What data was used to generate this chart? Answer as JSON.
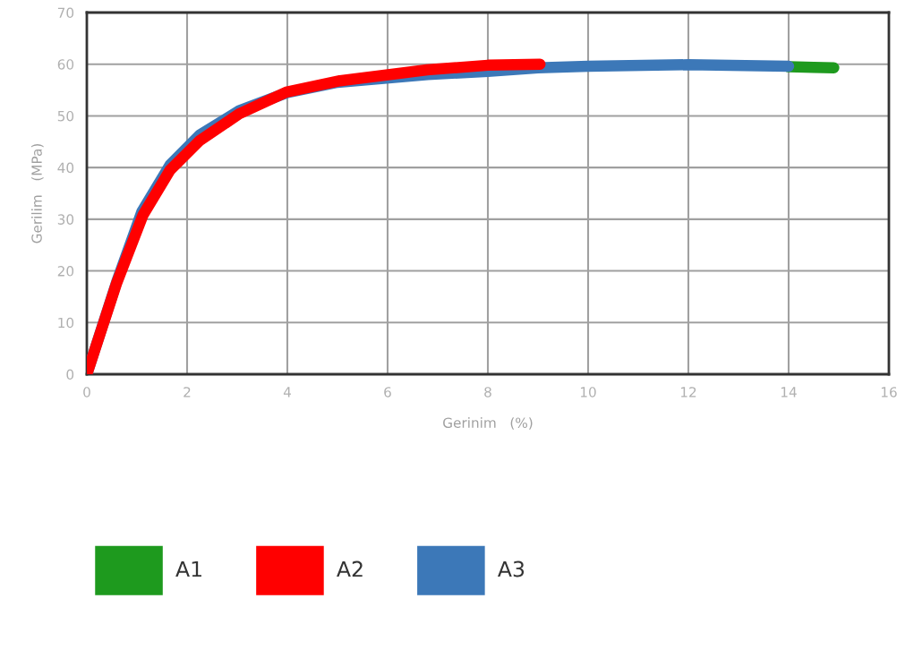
{
  "chart_data": {
    "type": "line",
    "xlabel": "Gerinim   (%)",
    "ylabel": "Gerilim   (MPa)",
    "xlim": [
      0,
      16
    ],
    "xticks": [
      0,
      2,
      4,
      6,
      8,
      10,
      12,
      14,
      16
    ],
    "ylim": [
      0,
      70
    ],
    "yticks": [
      0,
      10,
      20,
      30,
      40,
      50,
      60,
      70
    ],
    "grid": true,
    "legend": "bottom",
    "line_style": "solid",
    "series": [
      {
        "name": "A1",
        "color": "#1e9a1e",
        "x": [
          14.0,
          14.5,
          14.9
        ],
        "values": [
          59.5,
          59.4,
          59.3
        ]
      },
      {
        "name": "A3",
        "color": "#3c78b8",
        "x": [
          0,
          0.6,
          1.1,
          1.66,
          2.25,
          3.04,
          4.0,
          5.0,
          6.8,
          8.0,
          9.0,
          10.0,
          12.0,
          14.0
        ],
        "values": [
          0,
          18,
          31.5,
          40.5,
          46.3,
          51,
          54.5,
          56.5,
          58,
          58.6,
          59.3,
          59.6,
          59.9,
          59.6
        ]
      },
      {
        "name": "A2",
        "color": "#ff0000",
        "x": [
          0,
          0.59,
          1.12,
          1.66,
          2.25,
          3.04,
          3.98,
          5.05,
          6.79,
          8.0,
          9.04
        ],
        "values": [
          0,
          17.5,
          30.8,
          39.5,
          45.2,
          50.4,
          54.6,
          56.8,
          58.9,
          59.8,
          60
        ]
      }
    ]
  }
}
